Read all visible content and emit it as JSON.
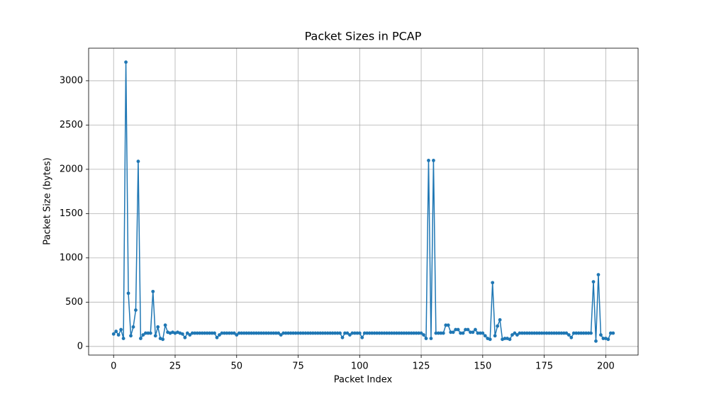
{
  "chart_data": {
    "type": "line",
    "title": "Packet Sizes in PCAP",
    "x_label": "Packet Index",
    "y_label": "Packet Size (bytes)",
    "x": [
      0,
      1,
      2,
      3,
      4,
      5,
      6,
      7,
      8,
      9,
      10,
      11,
      12,
      13,
      14,
      15,
      16,
      17,
      18,
      19,
      20,
      21,
      22,
      23,
      24,
      25,
      26,
      27,
      28,
      29,
      30,
      31,
      32,
      33,
      34,
      35,
      36,
      37,
      38,
      39,
      40,
      41,
      42,
      43,
      44,
      45,
      46,
      47,
      48,
      49,
      50,
      51,
      52,
      53,
      54,
      55,
      56,
      57,
      58,
      59,
      60,
      61,
      62,
      63,
      64,
      65,
      66,
      67,
      68,
      69,
      70,
      71,
      72,
      73,
      74,
      75,
      76,
      77,
      78,
      79,
      80,
      81,
      82,
      83,
      84,
      85,
      86,
      87,
      88,
      89,
      90,
      91,
      92,
      93,
      94,
      95,
      96,
      97,
      98,
      99,
      100,
      101,
      102,
      103,
      104,
      105,
      106,
      107,
      108,
      109,
      110,
      111,
      112,
      113,
      114,
      115,
      116,
      117,
      118,
      119,
      120,
      121,
      122,
      123,
      124,
      125,
      126,
      127,
      128,
      129,
      130,
      131,
      132,
      133,
      134,
      135,
      136,
      137,
      138,
      139,
      140,
      141,
      142,
      143,
      144,
      145,
      146,
      147,
      148,
      149,
      150,
      151,
      152,
      153,
      154,
      155,
      156,
      157,
      158,
      159,
      160,
      161,
      162,
      163,
      164,
      165,
      166,
      167,
      168,
      169,
      170,
      171,
      172,
      173,
      174,
      175,
      176,
      177,
      178,
      179,
      180,
      181,
      182,
      183,
      184,
      185,
      186,
      187,
      188,
      189,
      190,
      191,
      192,
      193,
      194,
      195,
      196,
      197,
      198,
      199,
      200,
      201,
      202,
      203
    ],
    "values": [
      140,
      170,
      130,
      190,
      90,
      3210,
      600,
      120,
      220,
      410,
      2090,
      90,
      130,
      150,
      150,
      150,
      620,
      120,
      220,
      90,
      80,
      240,
      160,
      150,
      160,
      150,
      160,
      150,
      140,
      100,
      150,
      130,
      150,
      150,
      150,
      150,
      150,
      150,
      150,
      150,
      150,
      150,
      100,
      130,
      150,
      150,
      150,
      150,
      150,
      150,
      130,
      150,
      150,
      150,
      150,
      150,
      150,
      150,
      150,
      150,
      150,
      150,
      150,
      150,
      150,
      150,
      150,
      150,
      130,
      150,
      150,
      150,
      150,
      150,
      150,
      150,
      150,
      150,
      150,
      150,
      150,
      150,
      150,
      150,
      150,
      150,
      150,
      150,
      150,
      150,
      150,
      150,
      150,
      100,
      150,
      150,
      130,
      150,
      150,
      150,
      150,
      100,
      150,
      150,
      150,
      150,
      150,
      150,
      150,
      150,
      150,
      150,
      150,
      150,
      150,
      150,
      150,
      150,
      150,
      150,
      150,
      150,
      150,
      150,
      150,
      150,
      130,
      90,
      2100,
      90,
      2100,
      150,
      150,
      150,
      150,
      240,
      240,
      160,
      160,
      190,
      190,
      150,
      150,
      190,
      190,
      160,
      160,
      190,
      150,
      150,
      150,
      120,
      90,
      80,
      720,
      120,
      230,
      300,
      80,
      90,
      90,
      80,
      130,
      150,
      130,
      150,
      150,
      150,
      150,
      150,
      150,
      150,
      150,
      150,
      150,
      150,
      150,
      150,
      150,
      150,
      150,
      150,
      150,
      150,
      150,
      130,
      100,
      150,
      150,
      150,
      150,
      150,
      150,
      150,
      150,
      730,
      60,
      810,
      130,
      90,
      90,
      80,
      150,
      150
    ],
    "color": "#1f77b4",
    "marker": "o",
    "xlim": [
      -10.15,
      213.15
    ],
    "xticks": [
      0,
      25,
      50,
      75,
      100,
      125,
      150,
      175,
      200
    ],
    "ylim": [
      -97.5,
      3367.5
    ],
    "yticks": [
      0,
      500,
      1000,
      1500,
      2000,
      2500,
      3000
    ],
    "grid": true
  }
}
